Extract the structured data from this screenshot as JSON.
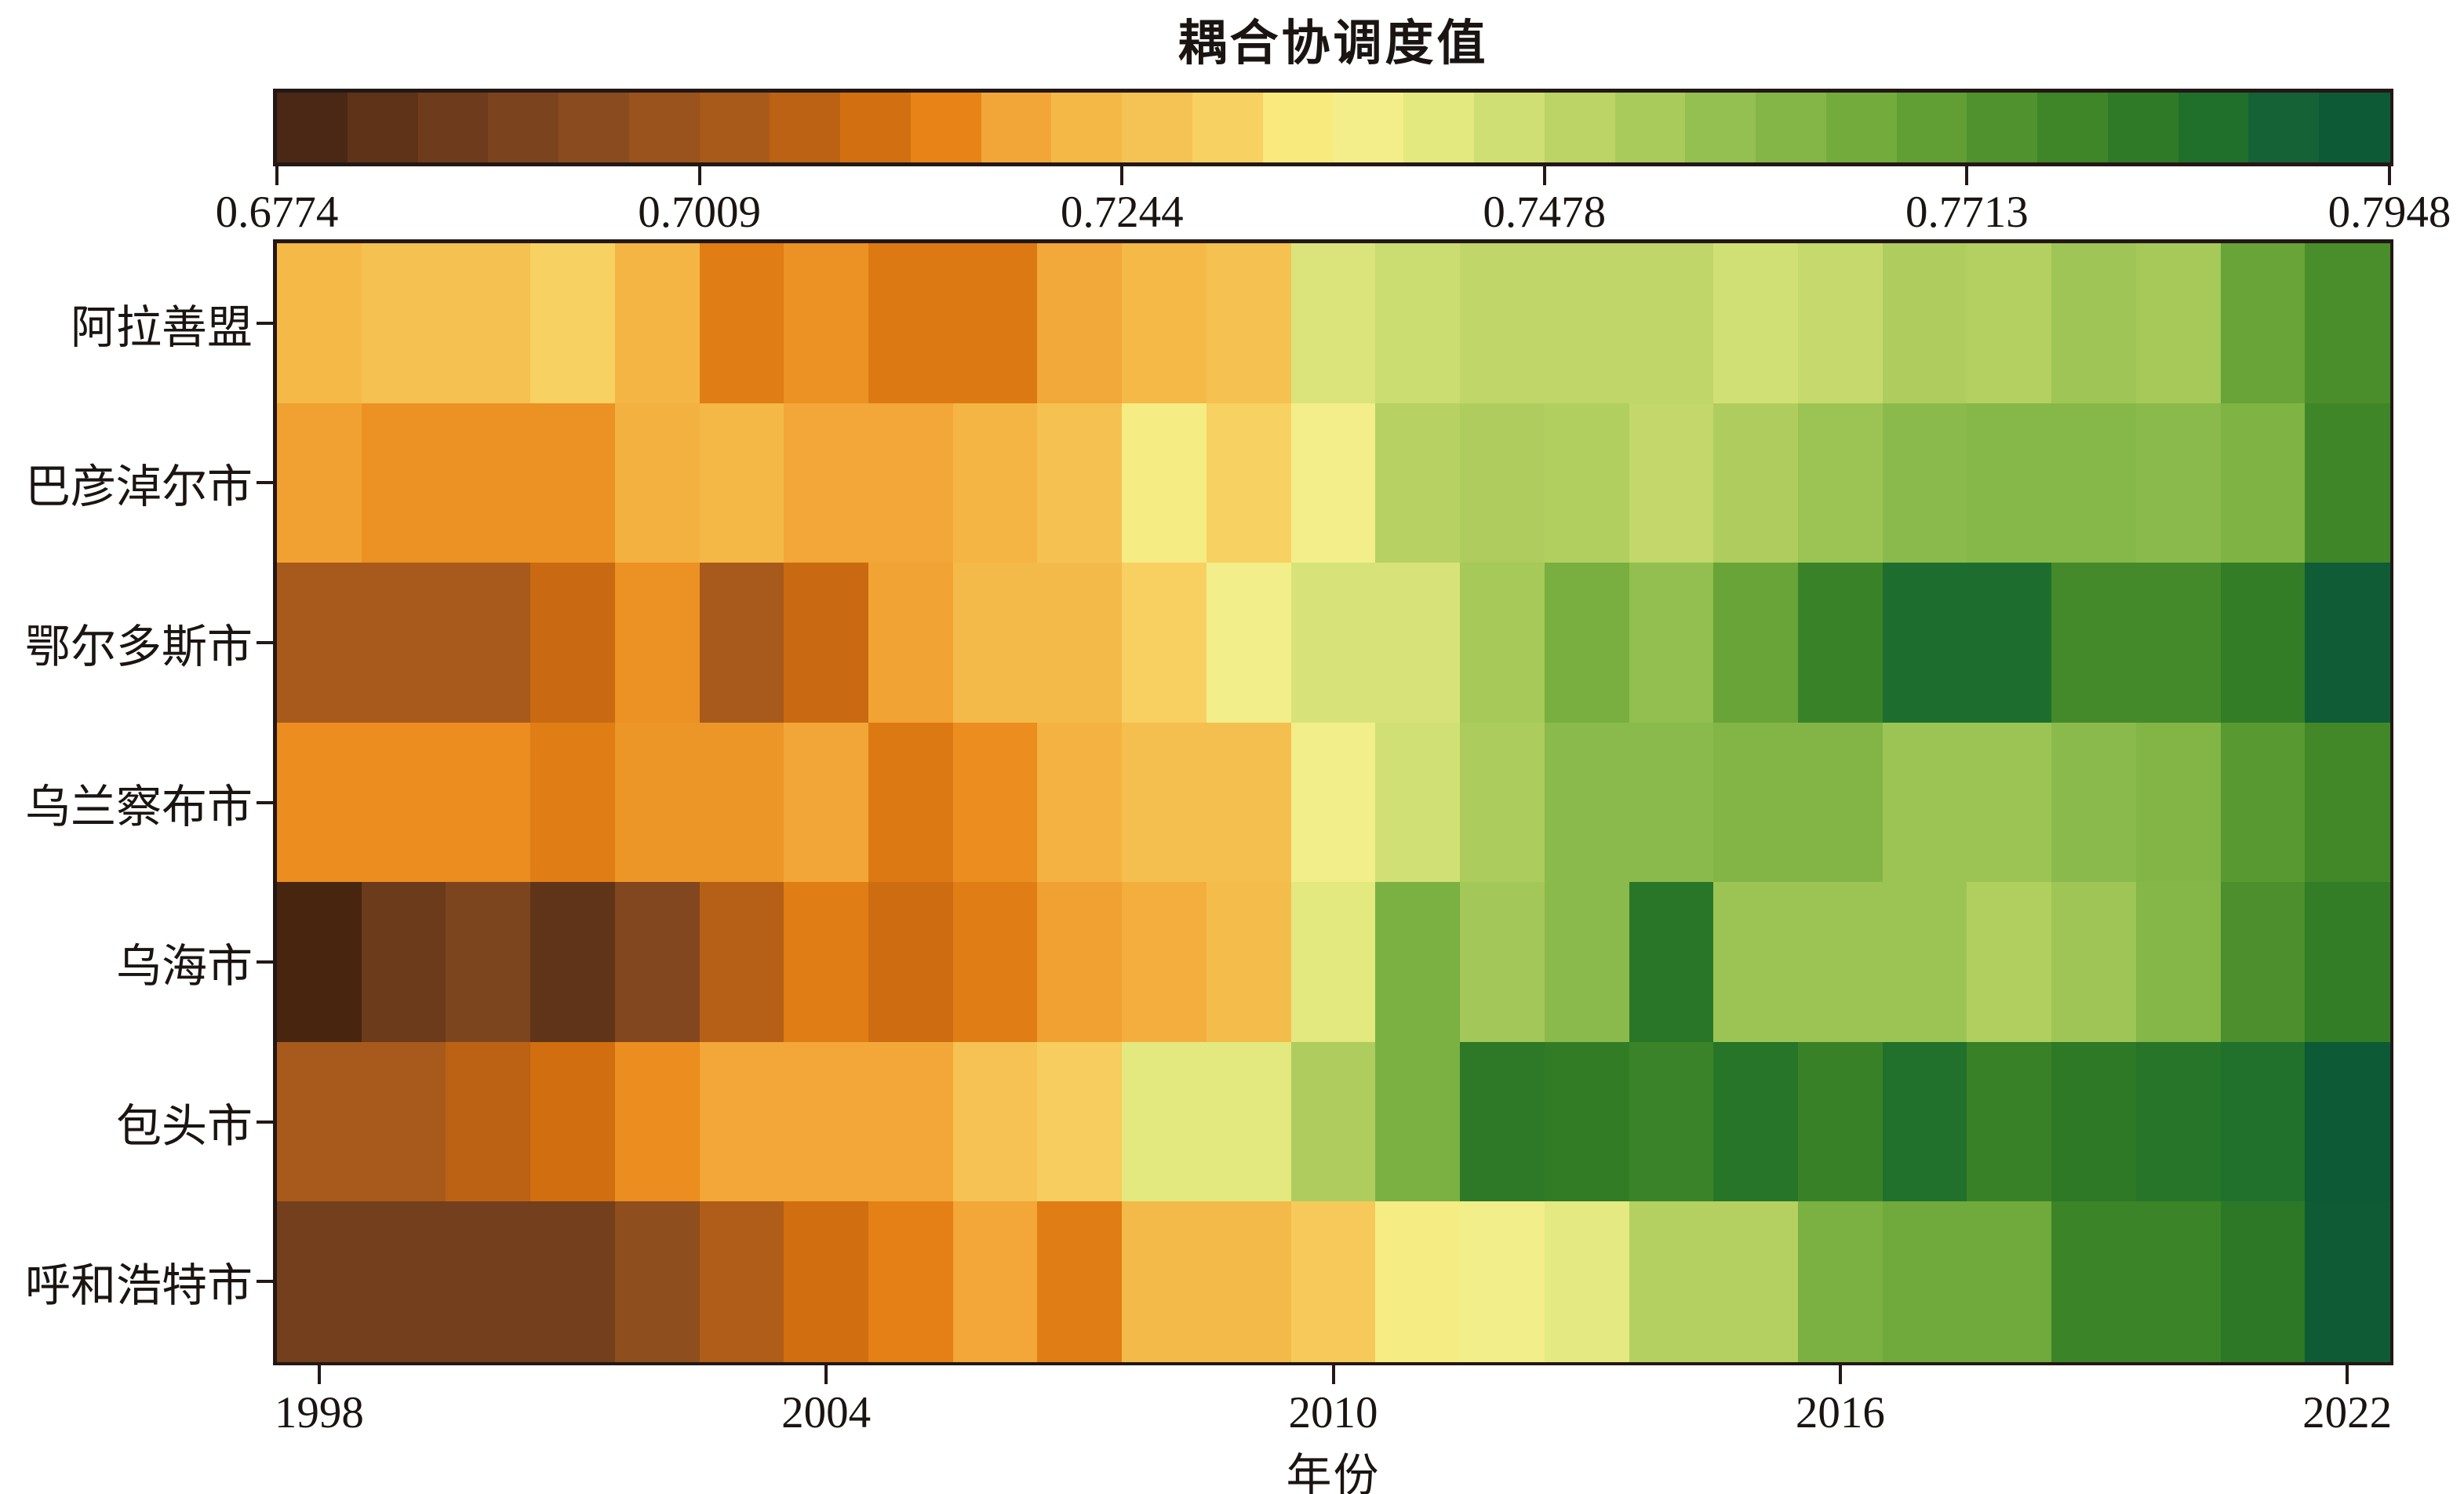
{
  "figure": {
    "title": "耦合协调度值",
    "xlabel": "年份",
    "background": "#FFFFFF",
    "border_color": "#231815",
    "text_color": "#1A1512"
  },
  "colorbar": {
    "title": "耦合协调度值",
    "tick_labels": [
      "0.6774",
      "0.7009",
      "0.7244",
      "0.7478",
      "0.7713",
      "0.7948"
    ],
    "min": 0.6774,
    "max": 0.7948,
    "blocks": 30,
    "position": "top"
  },
  "x_axis": {
    "label": "年份",
    "tick_labels": [
      "1998",
      "2004",
      "2010",
      "2016",
      "2022"
    ],
    "tick_years": [
      1998,
      2004,
      2010,
      2016,
      2022
    ]
  },
  "y_axis": {
    "categories": [
      "阿拉善盟",
      "巴彦淖尔市",
      "鄂尔多斯市",
      "乌兰察布市",
      "乌海市",
      "包头市",
      "呼和浩特市"
    ]
  },
  "chart_data": {
    "type": "heatmap",
    "title": "耦合协调度值",
    "xlabel": "年份",
    "ylabel": "",
    "vmin": 0.6774,
    "vmax": 0.7948,
    "grid": false,
    "legend_position": "top",
    "x": [
      1998,
      1999,
      2000,
      2001,
      2002,
      2003,
      2004,
      2005,
      2006,
      2007,
      2008,
      2009,
      2010,
      2011,
      2012,
      2013,
      2014,
      2015,
      2016,
      2017,
      2018,
      2019,
      2020,
      2021,
      2022
    ],
    "rows": [
      "阿拉善盟",
      "巴彦淖尔市",
      "鄂尔多斯市",
      "乌兰察布市",
      "乌海市",
      "包头市",
      "呼和浩特市"
    ],
    "series": [
      {
        "name": "阿拉善盟",
        "values": [
          0.7226,
          0.7255,
          0.7255,
          0.7302,
          0.7218,
          0.7132,
          0.7161,
          0.7126,
          0.7126,
          0.7191,
          0.7226,
          0.7255,
          0.7437,
          0.7467,
          0.749,
          0.749,
          0.749,
          0.7455,
          0.7478,
          0.7525,
          0.7514,
          0.7555,
          0.7543,
          0.7678,
          0.7746
        ]
      },
      {
        "name": "巴彦淖尔市",
        "values": [
          0.7179,
          0.7161,
          0.7161,
          0.7161,
          0.7208,
          0.7224,
          0.7187,
          0.7187,
          0.7218,
          0.7255,
          0.7361,
          0.7302,
          0.7379,
          0.7508,
          0.7525,
          0.752,
          0.7484,
          0.7525,
          0.7561,
          0.7596,
          0.7608,
          0.7608,
          0.7596,
          0.7625,
          0.7772
        ]
      },
      {
        "name": "鄂尔多斯市",
        "values": [
          0.7026,
          0.7026,
          0.7026,
          0.7091,
          0.7161,
          0.7026,
          0.7091,
          0.7181,
          0.7232,
          0.7232,
          0.7299,
          0.7384,
          0.7443,
          0.7443,
          0.7543,
          0.7643,
          0.7578,
          0.7678,
          0.7784,
          0.786,
          0.786,
          0.776,
          0.776,
          0.7801,
          0.7919
        ]
      },
      {
        "name": "乌兰察布市",
        "values": [
          0.7156,
          0.7156,
          0.7156,
          0.7132,
          0.7167,
          0.7167,
          0.7185,
          0.7126,
          0.7156,
          0.7211,
          0.725,
          0.725,
          0.7384,
          0.7455,
          0.7531,
          0.7596,
          0.7596,
          0.7619,
          0.7619,
          0.7561,
          0.7561,
          0.7596,
          0.7619,
          0.7713,
          0.7764
        ]
      },
      {
        "name": "乌海市",
        "values": [
          0.6774,
          0.6866,
          0.6915,
          0.6837,
          0.6927,
          0.7056,
          0.7132,
          0.7097,
          0.7132,
          0.7179,
          0.7203,
          0.7238,
          0.742,
          0.7637,
          0.7549,
          0.7596,
          0.7825,
          0.7561,
          0.7561,
          0.7561,
          0.752,
          0.7555,
          0.7613,
          0.7743,
          0.7801
        ]
      },
      {
        "name": "包头市",
        "values": [
          0.7026,
          0.7026,
          0.7068,
          0.7103,
          0.7156,
          0.7187,
          0.7187,
          0.7187,
          0.7261,
          0.7291,
          0.742,
          0.742,
          0.7525,
          0.7637,
          0.7815,
          0.7804,
          0.7781,
          0.7831,
          0.7787,
          0.7848,
          0.7787,
          0.7813,
          0.7831,
          0.7848,
          0.7948
        ]
      },
      {
        "name": "呼和浩特市",
        "values": [
          0.6886,
          0.6886,
          0.6886,
          0.6886,
          0.6962,
          0.7044,
          0.7103,
          0.7138,
          0.7187,
          0.7132,
          0.7232,
          0.7232,
          0.7279,
          0.7361,
          0.7384,
          0.7414,
          0.7514,
          0.7514,
          0.7637,
          0.766,
          0.766,
          0.7778,
          0.7778,
          0.7819,
          0.7924
        ]
      }
    ],
    "colormap": [
      [
        0.0,
        "#47250F"
      ],
      [
        0.017,
        "#4A2815"
      ],
      [
        0.05,
        "#5E3317"
      ],
      [
        0.083,
        "#6E3C1C"
      ],
      [
        0.117,
        "#7C441E"
      ],
      [
        0.15,
        "#8A4C1E"
      ],
      [
        0.183,
        "#9A531C"
      ],
      [
        0.217,
        "#A85A1B"
      ],
      [
        0.25,
        "#BC6215"
      ],
      [
        0.283,
        "#D26F10"
      ],
      [
        0.317,
        "#E88417"
      ],
      [
        0.35,
        "#F2A637"
      ],
      [
        0.383,
        "#F4B846"
      ],
      [
        0.417,
        "#F5C354"
      ],
      [
        0.45,
        "#F7D162"
      ],
      [
        0.483,
        "#F8EA7D"
      ],
      [
        0.517,
        "#F3EE8A"
      ],
      [
        0.55,
        "#E3E87F"
      ],
      [
        0.583,
        "#CFDF73"
      ],
      [
        0.617,
        "#BCD365"
      ],
      [
        0.65,
        "#A9CB5B"
      ],
      [
        0.683,
        "#94BF51"
      ],
      [
        0.717,
        "#83B647"
      ],
      [
        0.75,
        "#73AC3D"
      ],
      [
        0.783,
        "#619F35"
      ],
      [
        0.817,
        "#50922D"
      ],
      [
        0.85,
        "#3F8628"
      ],
      [
        0.883,
        "#2F7A26"
      ],
      [
        0.917,
        "#20702C"
      ],
      [
        0.95,
        "#146235"
      ],
      [
        0.983,
        "#0D5A36"
      ],
      [
        1.0,
        "#0C5A36"
      ]
    ]
  }
}
